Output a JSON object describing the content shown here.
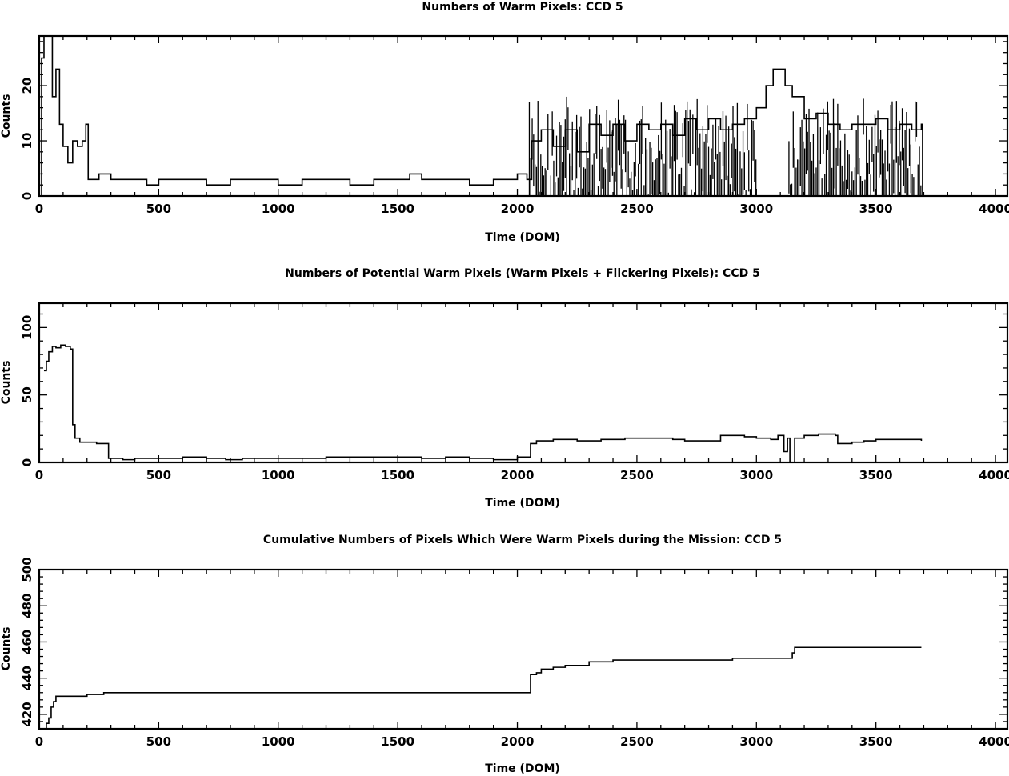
{
  "chart_data": [
    {
      "type": "line",
      "title": "Numbers of Warm Pixels: CCD 5",
      "xlabel": "Time (DOM)",
      "ylabel": "Counts",
      "xlim": [
        0,
        4050
      ],
      "ylim": [
        0,
        29
      ],
      "xticks": [
        0,
        500,
        1000,
        1500,
        2000,
        2500,
        3000,
        3500,
        4000
      ],
      "yticks": [
        0,
        10,
        20
      ],
      "grid": false,
      "series": [
        {
          "values": [
            {
              "x": 0,
              "y": 0
            },
            {
              "x": 10,
              "y": 25
            },
            {
              "x": 20,
              "y": 29
            },
            {
              "x": 40,
              "y": 29
            },
            {
              "x": 55,
              "y": 18
            },
            {
              "x": 70,
              "y": 23
            },
            {
              "x": 85,
              "y": 13
            },
            {
              "x": 100,
              "y": 9
            },
            {
              "x": 120,
              "y": 6
            },
            {
              "x": 140,
              "y": 10
            },
            {
              "x": 160,
              "y": 9
            },
            {
              "x": 180,
              "y": 10
            },
            {
              "x": 195,
              "y": 13
            },
            {
              "x": 205,
              "y": 3
            },
            {
              "x": 250,
              "y": 4
            },
            {
              "x": 300,
              "y": 3
            },
            {
              "x": 400,
              "y": 3
            },
            {
              "x": 450,
              "y": 2
            },
            {
              "x": 500,
              "y": 3
            },
            {
              "x": 600,
              "y": 3
            },
            {
              "x": 700,
              "y": 2
            },
            {
              "x": 800,
              "y": 3
            },
            {
              "x": 900,
              "y": 3
            },
            {
              "x": 1000,
              "y": 2
            },
            {
              "x": 1100,
              "y": 3
            },
            {
              "x": 1200,
              "y": 3
            },
            {
              "x": 1300,
              "y": 2
            },
            {
              "x": 1400,
              "y": 3
            },
            {
              "x": 1500,
              "y": 3
            },
            {
              "x": 1550,
              "y": 4
            },
            {
              "x": 1600,
              "y": 3
            },
            {
              "x": 1700,
              "y": 3
            },
            {
              "x": 1800,
              "y": 2
            },
            {
              "x": 1900,
              "y": 3
            },
            {
              "x": 2000,
              "y": 4
            },
            {
              "x": 2040,
              "y": 3
            },
            {
              "x": 2060,
              "y": 10
            },
            {
              "x": 2100,
              "y": 12
            },
            {
              "x": 2150,
              "y": 9
            },
            {
              "x": 2200,
              "y": 12
            },
            {
              "x": 2250,
              "y": 8
            },
            {
              "x": 2300,
              "y": 13
            },
            {
              "x": 2350,
              "y": 11
            },
            {
              "x": 2400,
              "y": 13
            },
            {
              "x": 2450,
              "y": 10
            },
            {
              "x": 2500,
              "y": 13
            },
            {
              "x": 2550,
              "y": 12
            },
            {
              "x": 2600,
              "y": 13
            },
            {
              "x": 2650,
              "y": 11
            },
            {
              "x": 2700,
              "y": 14
            },
            {
              "x": 2750,
              "y": 12
            },
            {
              "x": 2800,
              "y": 14
            },
            {
              "x": 2850,
              "y": 12
            },
            {
              "x": 2900,
              "y": 13
            },
            {
              "x": 2950,
              "y": 14
            },
            {
              "x": 3000,
              "y": 16
            },
            {
              "x": 3040,
              "y": 20
            },
            {
              "x": 3070,
              "y": 23
            },
            {
              "x": 3100,
              "y": 23
            },
            {
              "x": 3120,
              "y": 20
            },
            {
              "x": 3150,
              "y": 18
            },
            {
              "x": 3200,
              "y": 14
            },
            {
              "x": 3250,
              "y": 15
            },
            {
              "x": 3300,
              "y": 13
            },
            {
              "x": 3350,
              "y": 12
            },
            {
              "x": 3400,
              "y": 13
            },
            {
              "x": 3450,
              "y": 13
            },
            {
              "x": 3500,
              "y": 14
            },
            {
              "x": 3550,
              "y": 12
            },
            {
              "x": 3600,
              "y": 13
            },
            {
              "x": 3650,
              "y": 12
            },
            {
              "x": 3690,
              "y": 13
            },
            {
              "x": 3695,
              "y": 0
            },
            {
              "x": 4050,
              "y": 0
            }
          ]
        }
      ],
      "noise_bands": [
        {
          "x0": 2050,
          "x1": 3000,
          "ymin": 0,
          "ymax": 18
        },
        {
          "x0": 3130,
          "x1": 3690,
          "ymin": 0,
          "ymax": 18
        }
      ]
    },
    {
      "type": "line",
      "title": "Numbers of Potential Warm Pixels (Warm Pixels + Flickering Pixels): CCD 5",
      "xlabel": "Time (DOM)",
      "ylabel": "Counts",
      "xlim": [
        0,
        4050
      ],
      "ylim": [
        0,
        118
      ],
      "xticks": [
        0,
        500,
        1000,
        1500,
        2000,
        2500,
        3000,
        3500,
        4000
      ],
      "yticks": [
        0,
        50,
        100
      ],
      "grid": false,
      "series": [
        {
          "values": [
            {
              "x": 20,
              "y": 68
            },
            {
              "x": 30,
              "y": 75
            },
            {
              "x": 40,
              "y": 82
            },
            {
              "x": 55,
              "y": 86
            },
            {
              "x": 70,
              "y": 85
            },
            {
              "x": 90,
              "y": 87
            },
            {
              "x": 110,
              "y": 86
            },
            {
              "x": 130,
              "y": 84
            },
            {
              "x": 140,
              "y": 28
            },
            {
              "x": 150,
              "y": 18
            },
            {
              "x": 170,
              "y": 15
            },
            {
              "x": 200,
              "y": 15
            },
            {
              "x": 240,
              "y": 14
            },
            {
              "x": 280,
              "y": 14
            },
            {
              "x": 290,
              "y": 3
            },
            {
              "x": 350,
              "y": 2
            },
            {
              "x": 400,
              "y": 3
            },
            {
              "x": 500,
              "y": 3
            },
            {
              "x": 600,
              "y": 4
            },
            {
              "x": 700,
              "y": 3
            },
            {
              "x": 780,
              "y": 2
            },
            {
              "x": 850,
              "y": 3
            },
            {
              "x": 1000,
              "y": 3
            },
            {
              "x": 1200,
              "y": 4
            },
            {
              "x": 1400,
              "y": 4
            },
            {
              "x": 1600,
              "y": 3
            },
            {
              "x": 1700,
              "y": 4
            },
            {
              "x": 1800,
              "y": 3
            },
            {
              "x": 1900,
              "y": 2
            },
            {
              "x": 2000,
              "y": 4
            },
            {
              "x": 2050,
              "y": 4
            },
            {
              "x": 2055,
              "y": 14
            },
            {
              "x": 2080,
              "y": 16
            },
            {
              "x": 2150,
              "y": 17
            },
            {
              "x": 2250,
              "y": 16
            },
            {
              "x": 2350,
              "y": 17
            },
            {
              "x": 2450,
              "y": 18
            },
            {
              "x": 2550,
              "y": 18
            },
            {
              "x": 2650,
              "y": 17
            },
            {
              "x": 2700,
              "y": 16
            },
            {
              "x": 2800,
              "y": 16
            },
            {
              "x": 2850,
              "y": 20
            },
            {
              "x": 2950,
              "y": 19
            },
            {
              "x": 3000,
              "y": 18
            },
            {
              "x": 3060,
              "y": 17
            },
            {
              "x": 3090,
              "y": 20
            },
            {
              "x": 3110,
              "y": 20
            },
            {
              "x": 3115,
              "y": 8
            },
            {
              "x": 3130,
              "y": 18
            },
            {
              "x": 3140,
              "y": 0
            },
            {
              "x": 3155,
              "y": 0
            },
            {
              "x": 3160,
              "y": 18
            },
            {
              "x": 3200,
              "y": 20
            },
            {
              "x": 3260,
              "y": 21
            },
            {
              "x": 3330,
              "y": 20
            },
            {
              "x": 3340,
              "y": 14
            },
            {
              "x": 3400,
              "y": 15
            },
            {
              "x": 3450,
              "y": 16
            },
            {
              "x": 3500,
              "y": 17
            },
            {
              "x": 3600,
              "y": 17
            },
            {
              "x": 3690,
              "y": 16
            }
          ]
        }
      ]
    },
    {
      "type": "line",
      "title": "Cumulative Numbers of Pixels Which Were Warm Pixels during the Mission: CCD 5",
      "xlabel": "Time (DOM)",
      "ylabel": "Counts",
      "xlim": [
        0,
        4050
      ],
      "ylim": [
        412,
        500
      ],
      "xticks": [
        0,
        500,
        1000,
        1500,
        2000,
        2500,
        3000,
        3500,
        4000
      ],
      "yticks": [
        420,
        440,
        460,
        480,
        500
      ],
      "grid": false,
      "series": [
        {
          "values": [
            {
              "x": 20,
              "y": 412
            },
            {
              "x": 30,
              "y": 415
            },
            {
              "x": 40,
              "y": 418
            },
            {
              "x": 50,
              "y": 424
            },
            {
              "x": 60,
              "y": 427
            },
            {
              "x": 70,
              "y": 430
            },
            {
              "x": 200,
              "y": 431
            },
            {
              "x": 270,
              "y": 432
            },
            {
              "x": 2050,
              "y": 432
            },
            {
              "x": 2055,
              "y": 442
            },
            {
              "x": 2080,
              "y": 443
            },
            {
              "x": 2100,
              "y": 445
            },
            {
              "x": 2150,
              "y": 446
            },
            {
              "x": 2200,
              "y": 447
            },
            {
              "x": 2300,
              "y": 449
            },
            {
              "x": 2400,
              "y": 450
            },
            {
              "x": 2900,
              "y": 451
            },
            {
              "x": 3140,
              "y": 451
            },
            {
              "x": 3150,
              "y": 454
            },
            {
              "x": 3160,
              "y": 457
            },
            {
              "x": 3690,
              "y": 457
            }
          ]
        }
      ]
    }
  ]
}
